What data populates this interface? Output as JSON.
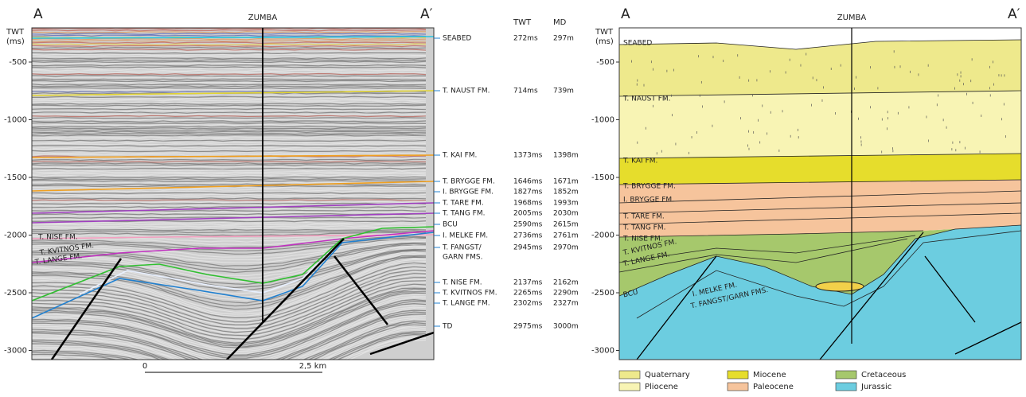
{
  "seismic": {
    "a": "A",
    "a_prime": "A′",
    "well": "ZUMBA",
    "axis_title": [
      "TWT",
      "(ms)"
    ],
    "yticks": [
      -500,
      -1000,
      -1500,
      -2000,
      -2500,
      -3000
    ],
    "horizon_labels": [
      "T. NISE FM.",
      "T. KVITNOS FM.",
      "T. LANGE FM."
    ],
    "scale_bar": {
      "start": "0",
      "end": "2,5 km"
    }
  },
  "table": {
    "headers": [
      "TWT",
      "MD"
    ],
    "rows": [
      {
        "name": [
          "SEABED"
        ],
        "twt": "272ms",
        "md": "297m"
      },
      {
        "name": [
          "T. NAUST FM."
        ],
        "twt": "714ms",
        "md": "739m"
      },
      {
        "name": [
          "T. KAI FM."
        ],
        "twt": "1373ms",
        "md": "1398m"
      },
      {
        "name": [
          "T. BRYGGE FM."
        ],
        "twt": "1646ms",
        "md": "1671m"
      },
      {
        "name": [
          "I. BRYGGE FM."
        ],
        "twt": "1827ms",
        "md": "1852m"
      },
      {
        "name": [
          "T. TARE FM."
        ],
        "twt": "1968ms",
        "md": "1993m"
      },
      {
        "name": [
          "T. TANG FM."
        ],
        "twt": "2005ms",
        "md": "2030m"
      },
      {
        "name": [
          "BCU"
        ],
        "twt": "2590ms",
        "md": "2615m"
      },
      {
        "name": [
          "I. MELKE FM."
        ],
        "twt": "2736ms",
        "md": "2761m"
      },
      {
        "name": [
          "T. FANGST/",
          "GARN FMS."
        ],
        "twt": "2945ms",
        "md": "2970m"
      },
      {
        "name": [
          "T. NISE FM."
        ],
        "twt": "2137ms",
        "md": "2162m"
      },
      {
        "name": [
          "T. KVITNOS FM."
        ],
        "twt": "2265ms",
        "md": "2290m"
      },
      {
        "name": [
          "T. LANGE FM."
        ],
        "twt": "2302ms",
        "md": "2327m"
      },
      {
        "name": [
          "TD"
        ],
        "twt": "2975ms",
        "md": "3000m"
      }
    ]
  },
  "interpretation": {
    "a": "A",
    "a_prime": "A′",
    "well": "ZUMBA",
    "axis_title": [
      "TWT",
      "(ms)"
    ],
    "yticks": [
      -500,
      -1000,
      -1500,
      -2000,
      -2500,
      -3000
    ],
    "labels": [
      "SEABED",
      "T. NAUST FM.",
      "T. KAI FM.",
      "T. BRYGGE FM.",
      "I. BRYGGE FM.",
      "T. TARE FM.",
      "T. TANG FM.",
      "T. NISE FM.",
      "T. KVITNOS FM.",
      "T. LANGE FM.",
      "BCU",
      "I. MELKE FM.",
      "T. FANGST/GARN FMS."
    ]
  },
  "legend": [
    {
      "label": "Quaternary",
      "color": "#eee98c"
    },
    {
      "label": "Pliocene",
      "color": "#f8f4b4"
    },
    {
      "label": "Miocene",
      "color": "#e6dd2c"
    },
    {
      "label": "Paleocene",
      "color": "#f6c49c"
    },
    {
      "label": "Cretaceous",
      "color": "#a6c86c"
    },
    {
      "label": "Jurassic",
      "color": "#6ccde0"
    }
  ]
}
